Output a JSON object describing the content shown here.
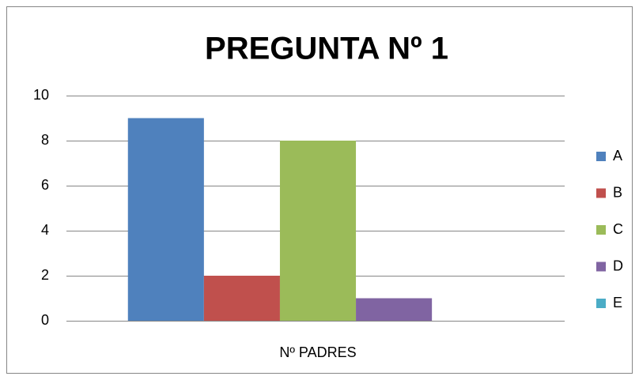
{
  "chart_data": {
    "type": "bar",
    "title": "PREGUNTA Nº 1",
    "categories": [
      "Nº PADRES"
    ],
    "series": [
      {
        "name": "A",
        "color": "#4f81bd",
        "values": [
          9
        ]
      },
      {
        "name": "B",
        "color": "#c0504d",
        "values": [
          2
        ]
      },
      {
        "name": "C",
        "color": "#9bbb59",
        "values": [
          8
        ]
      },
      {
        "name": "D",
        "color": "#8064a2",
        "values": [
          1
        ]
      },
      {
        "name": "E",
        "color": "#4bacc6",
        "values": [
          0
        ]
      }
    ],
    "ylim": [
      0,
      10
    ],
    "yticks": [
      0,
      2,
      4,
      6,
      8,
      10
    ],
    "grid": true,
    "legend": "right"
  }
}
